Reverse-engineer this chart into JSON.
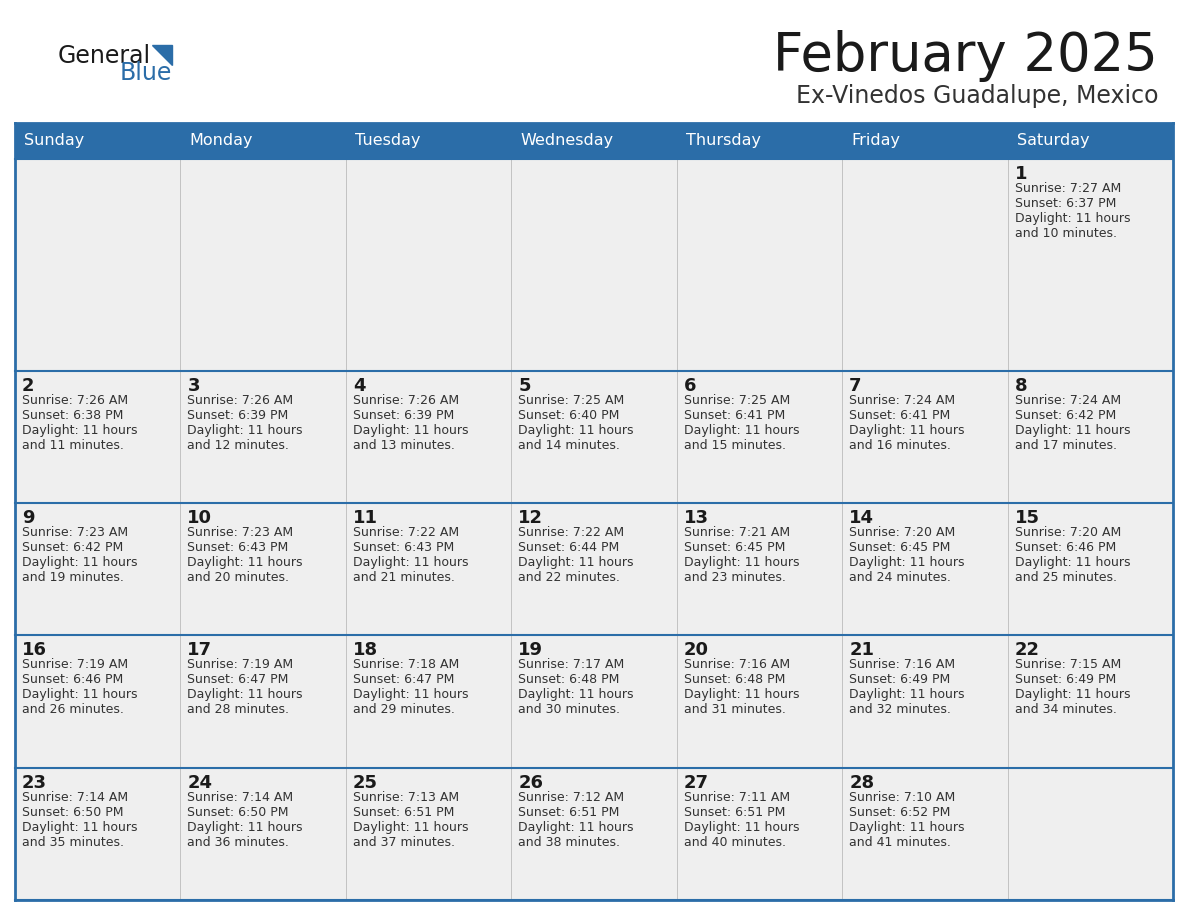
{
  "title": "February 2025",
  "subtitle": "Ex-Vinedos Guadalupe, Mexico",
  "header_bg": "#2B6DA8",
  "header_text": "#FFFFFF",
  "cell_bg": "#EFEFEF",
  "border_color": "#2B6DA8",
  "day_headers": [
    "Sunday",
    "Monday",
    "Tuesday",
    "Wednesday",
    "Thursday",
    "Friday",
    "Saturday"
  ],
  "title_color": "#1a1a1a",
  "subtitle_color": "#333333",
  "day_number_color": "#1a1a1a",
  "info_text_color": "#333333",
  "logo_general_color": "#1a1a1a",
  "logo_blue_color": "#2B6DA8",
  "calendar": [
    [
      null,
      null,
      null,
      null,
      null,
      null,
      {
        "day": "1",
        "sunrise": "7:27 AM",
        "sunset": "6:37 PM",
        "daylight_line1": "Daylight: 11 hours",
        "daylight_line2": "and 10 minutes."
      }
    ],
    [
      {
        "day": "2",
        "sunrise": "7:26 AM",
        "sunset": "6:38 PM",
        "daylight_line1": "Daylight: 11 hours",
        "daylight_line2": "and 11 minutes."
      },
      {
        "day": "3",
        "sunrise": "7:26 AM",
        "sunset": "6:39 PM",
        "daylight_line1": "Daylight: 11 hours",
        "daylight_line2": "and 12 minutes."
      },
      {
        "day": "4",
        "sunrise": "7:26 AM",
        "sunset": "6:39 PM",
        "daylight_line1": "Daylight: 11 hours",
        "daylight_line2": "and 13 minutes."
      },
      {
        "day": "5",
        "sunrise": "7:25 AM",
        "sunset": "6:40 PM",
        "daylight_line1": "Daylight: 11 hours",
        "daylight_line2": "and 14 minutes."
      },
      {
        "day": "6",
        "sunrise": "7:25 AM",
        "sunset": "6:41 PM",
        "daylight_line1": "Daylight: 11 hours",
        "daylight_line2": "and 15 minutes."
      },
      {
        "day": "7",
        "sunrise": "7:24 AM",
        "sunset": "6:41 PM",
        "daylight_line1": "Daylight: 11 hours",
        "daylight_line2": "and 16 minutes."
      },
      {
        "day": "8",
        "sunrise": "7:24 AM",
        "sunset": "6:42 PM",
        "daylight_line1": "Daylight: 11 hours",
        "daylight_line2": "and 17 minutes."
      }
    ],
    [
      {
        "day": "9",
        "sunrise": "7:23 AM",
        "sunset": "6:42 PM",
        "daylight_line1": "Daylight: 11 hours",
        "daylight_line2": "and 19 minutes."
      },
      {
        "day": "10",
        "sunrise": "7:23 AM",
        "sunset": "6:43 PM",
        "daylight_line1": "Daylight: 11 hours",
        "daylight_line2": "and 20 minutes."
      },
      {
        "day": "11",
        "sunrise": "7:22 AM",
        "sunset": "6:43 PM",
        "daylight_line1": "Daylight: 11 hours",
        "daylight_line2": "and 21 minutes."
      },
      {
        "day": "12",
        "sunrise": "7:22 AM",
        "sunset": "6:44 PM",
        "daylight_line1": "Daylight: 11 hours",
        "daylight_line2": "and 22 minutes."
      },
      {
        "day": "13",
        "sunrise": "7:21 AM",
        "sunset": "6:45 PM",
        "daylight_line1": "Daylight: 11 hours",
        "daylight_line2": "and 23 minutes."
      },
      {
        "day": "14",
        "sunrise": "7:20 AM",
        "sunset": "6:45 PM",
        "daylight_line1": "Daylight: 11 hours",
        "daylight_line2": "and 24 minutes."
      },
      {
        "day": "15",
        "sunrise": "7:20 AM",
        "sunset": "6:46 PM",
        "daylight_line1": "Daylight: 11 hours",
        "daylight_line2": "and 25 minutes."
      }
    ],
    [
      {
        "day": "16",
        "sunrise": "7:19 AM",
        "sunset": "6:46 PM",
        "daylight_line1": "Daylight: 11 hours",
        "daylight_line2": "and 26 minutes."
      },
      {
        "day": "17",
        "sunrise": "7:19 AM",
        "sunset": "6:47 PM",
        "daylight_line1": "Daylight: 11 hours",
        "daylight_line2": "and 28 minutes."
      },
      {
        "day": "18",
        "sunrise": "7:18 AM",
        "sunset": "6:47 PM",
        "daylight_line1": "Daylight: 11 hours",
        "daylight_line2": "and 29 minutes."
      },
      {
        "day": "19",
        "sunrise": "7:17 AM",
        "sunset": "6:48 PM",
        "daylight_line1": "Daylight: 11 hours",
        "daylight_line2": "and 30 minutes."
      },
      {
        "day": "20",
        "sunrise": "7:16 AM",
        "sunset": "6:48 PM",
        "daylight_line1": "Daylight: 11 hours",
        "daylight_line2": "and 31 minutes."
      },
      {
        "day": "21",
        "sunrise": "7:16 AM",
        "sunset": "6:49 PM",
        "daylight_line1": "Daylight: 11 hours",
        "daylight_line2": "and 32 minutes."
      },
      {
        "day": "22",
        "sunrise": "7:15 AM",
        "sunset": "6:49 PM",
        "daylight_line1": "Daylight: 11 hours",
        "daylight_line2": "and 34 minutes."
      }
    ],
    [
      {
        "day": "23",
        "sunrise": "7:14 AM",
        "sunset": "6:50 PM",
        "daylight_line1": "Daylight: 11 hours",
        "daylight_line2": "and 35 minutes."
      },
      {
        "day": "24",
        "sunrise": "7:14 AM",
        "sunset": "6:50 PM",
        "daylight_line1": "Daylight: 11 hours",
        "daylight_line2": "and 36 minutes."
      },
      {
        "day": "25",
        "sunrise": "7:13 AM",
        "sunset": "6:51 PM",
        "daylight_line1": "Daylight: 11 hours",
        "daylight_line2": "and 37 minutes."
      },
      {
        "day": "26",
        "sunrise": "7:12 AM",
        "sunset": "6:51 PM",
        "daylight_line1": "Daylight: 11 hours",
        "daylight_line2": "and 38 minutes."
      },
      {
        "day": "27",
        "sunrise": "7:11 AM",
        "sunset": "6:51 PM",
        "daylight_line1": "Daylight: 11 hours",
        "daylight_line2": "and 40 minutes."
      },
      {
        "day": "28",
        "sunrise": "7:10 AM",
        "sunset": "6:52 PM",
        "daylight_line1": "Daylight: 11 hours",
        "daylight_line2": "and 41 minutes."
      },
      null
    ]
  ],
  "row_heights_ratio": [
    1.6,
    1.0,
    1.0,
    1.0,
    1.0
  ]
}
